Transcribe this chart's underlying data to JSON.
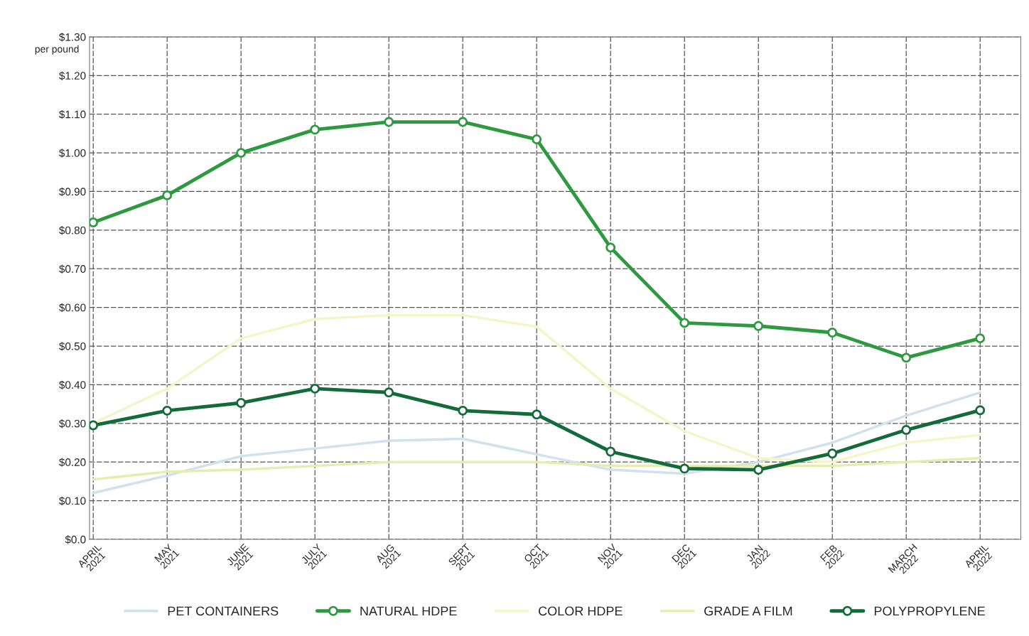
{
  "chart_data": {
    "type": "line",
    "ylabel": "per pound",
    "categories": [
      "APRIL\n2021",
      "MAY\n2021",
      "JUNE\n2021",
      "JULY\n2021",
      "AUG\n2021",
      "SEPT\n2021",
      "OCT\n2021",
      "NOV\n2021",
      "DEC\n2021",
      "JAN\n2022",
      "FEB\n2022",
      "MARCH\n2022",
      "APRIL\n2022"
    ],
    "series": [
      {
        "name": "PET CONTAINERS",
        "color": "#cfe2ee",
        "marker": "none",
        "values": [
          0.12,
          0.165,
          0.215,
          0.235,
          0.255,
          0.26,
          0.22,
          0.18,
          0.17,
          0.2,
          0.25,
          0.32,
          0.38
        ]
      },
      {
        "name": "NATURAL HDPE",
        "color": "#2e9a40",
        "marker": "circle",
        "values": [
          0.82,
          0.89,
          1.0,
          1.06,
          1.08,
          1.08,
          1.035,
          0.755,
          0.56,
          0.552,
          0.535,
          0.47,
          0.52
        ]
      },
      {
        "name": "COLOR HDPE",
        "color": "#f4f6c8",
        "marker": "none",
        "values": [
          0.3,
          0.39,
          0.52,
          0.57,
          0.58,
          0.58,
          0.55,
          0.39,
          0.28,
          0.21,
          0.2,
          0.25,
          0.27
        ]
      },
      {
        "name": "GRADE A FILM",
        "color": "#e4eeae",
        "marker": "none",
        "values": [
          0.155,
          0.175,
          0.18,
          0.19,
          0.2,
          0.2,
          0.2,
          0.19,
          0.19,
          0.19,
          0.19,
          0.2,
          0.21
        ]
      },
      {
        "name": "POLYPROPYLENE",
        "color": "#146b3a",
        "marker": "circle",
        "values": [
          0.295,
          0.333,
          0.353,
          0.39,
          0.38,
          0.333,
          0.323,
          0.227,
          0.183,
          0.18,
          0.222,
          0.283,
          0.334
        ]
      }
    ],
    "ylim": [
      0,
      1.3
    ],
    "yticks": [
      {
        "value": 0,
        "label": "$0.0"
      },
      {
        "value": 0.1,
        "label": "$0.10"
      },
      {
        "value": 0.2,
        "label": "$0.20"
      },
      {
        "value": 0.3,
        "label": "$0.30"
      },
      {
        "value": 0.4,
        "label": "$0.40"
      },
      {
        "value": 0.5,
        "label": "$0.50"
      },
      {
        "value": 0.6,
        "label": "$0.60"
      },
      {
        "value": 0.7,
        "label": "$0.70"
      },
      {
        "value": 0.8,
        "label": "$0.80"
      },
      {
        "value": 0.9,
        "label": "$0.90"
      },
      {
        "value": 1.0,
        "label": "$1.00"
      },
      {
        "value": 1.1,
        "label": "$1.10"
      },
      {
        "value": 1.2,
        "label": "$1.20"
      },
      {
        "value": 1.3,
        "label": "$1.30"
      }
    ],
    "grid": true,
    "legend": "bottom",
    "line_style": "solid"
  }
}
